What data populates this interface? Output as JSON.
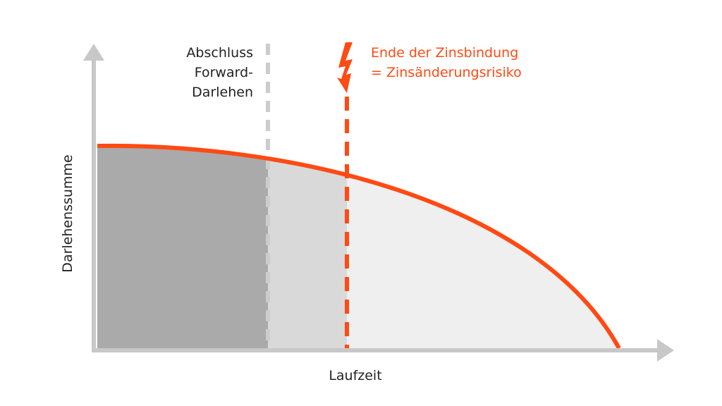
{
  "labels": {
    "forward": [
      "Abschluss",
      "Forward-",
      "Darlehen"
    ],
    "end": [
      "Ende der Zinsbindung",
      "= Zinsänderungsrisiko"
    ],
    "y_axis": "Darlehenssumme",
    "x_axis": "Laufzeit"
  }
}
